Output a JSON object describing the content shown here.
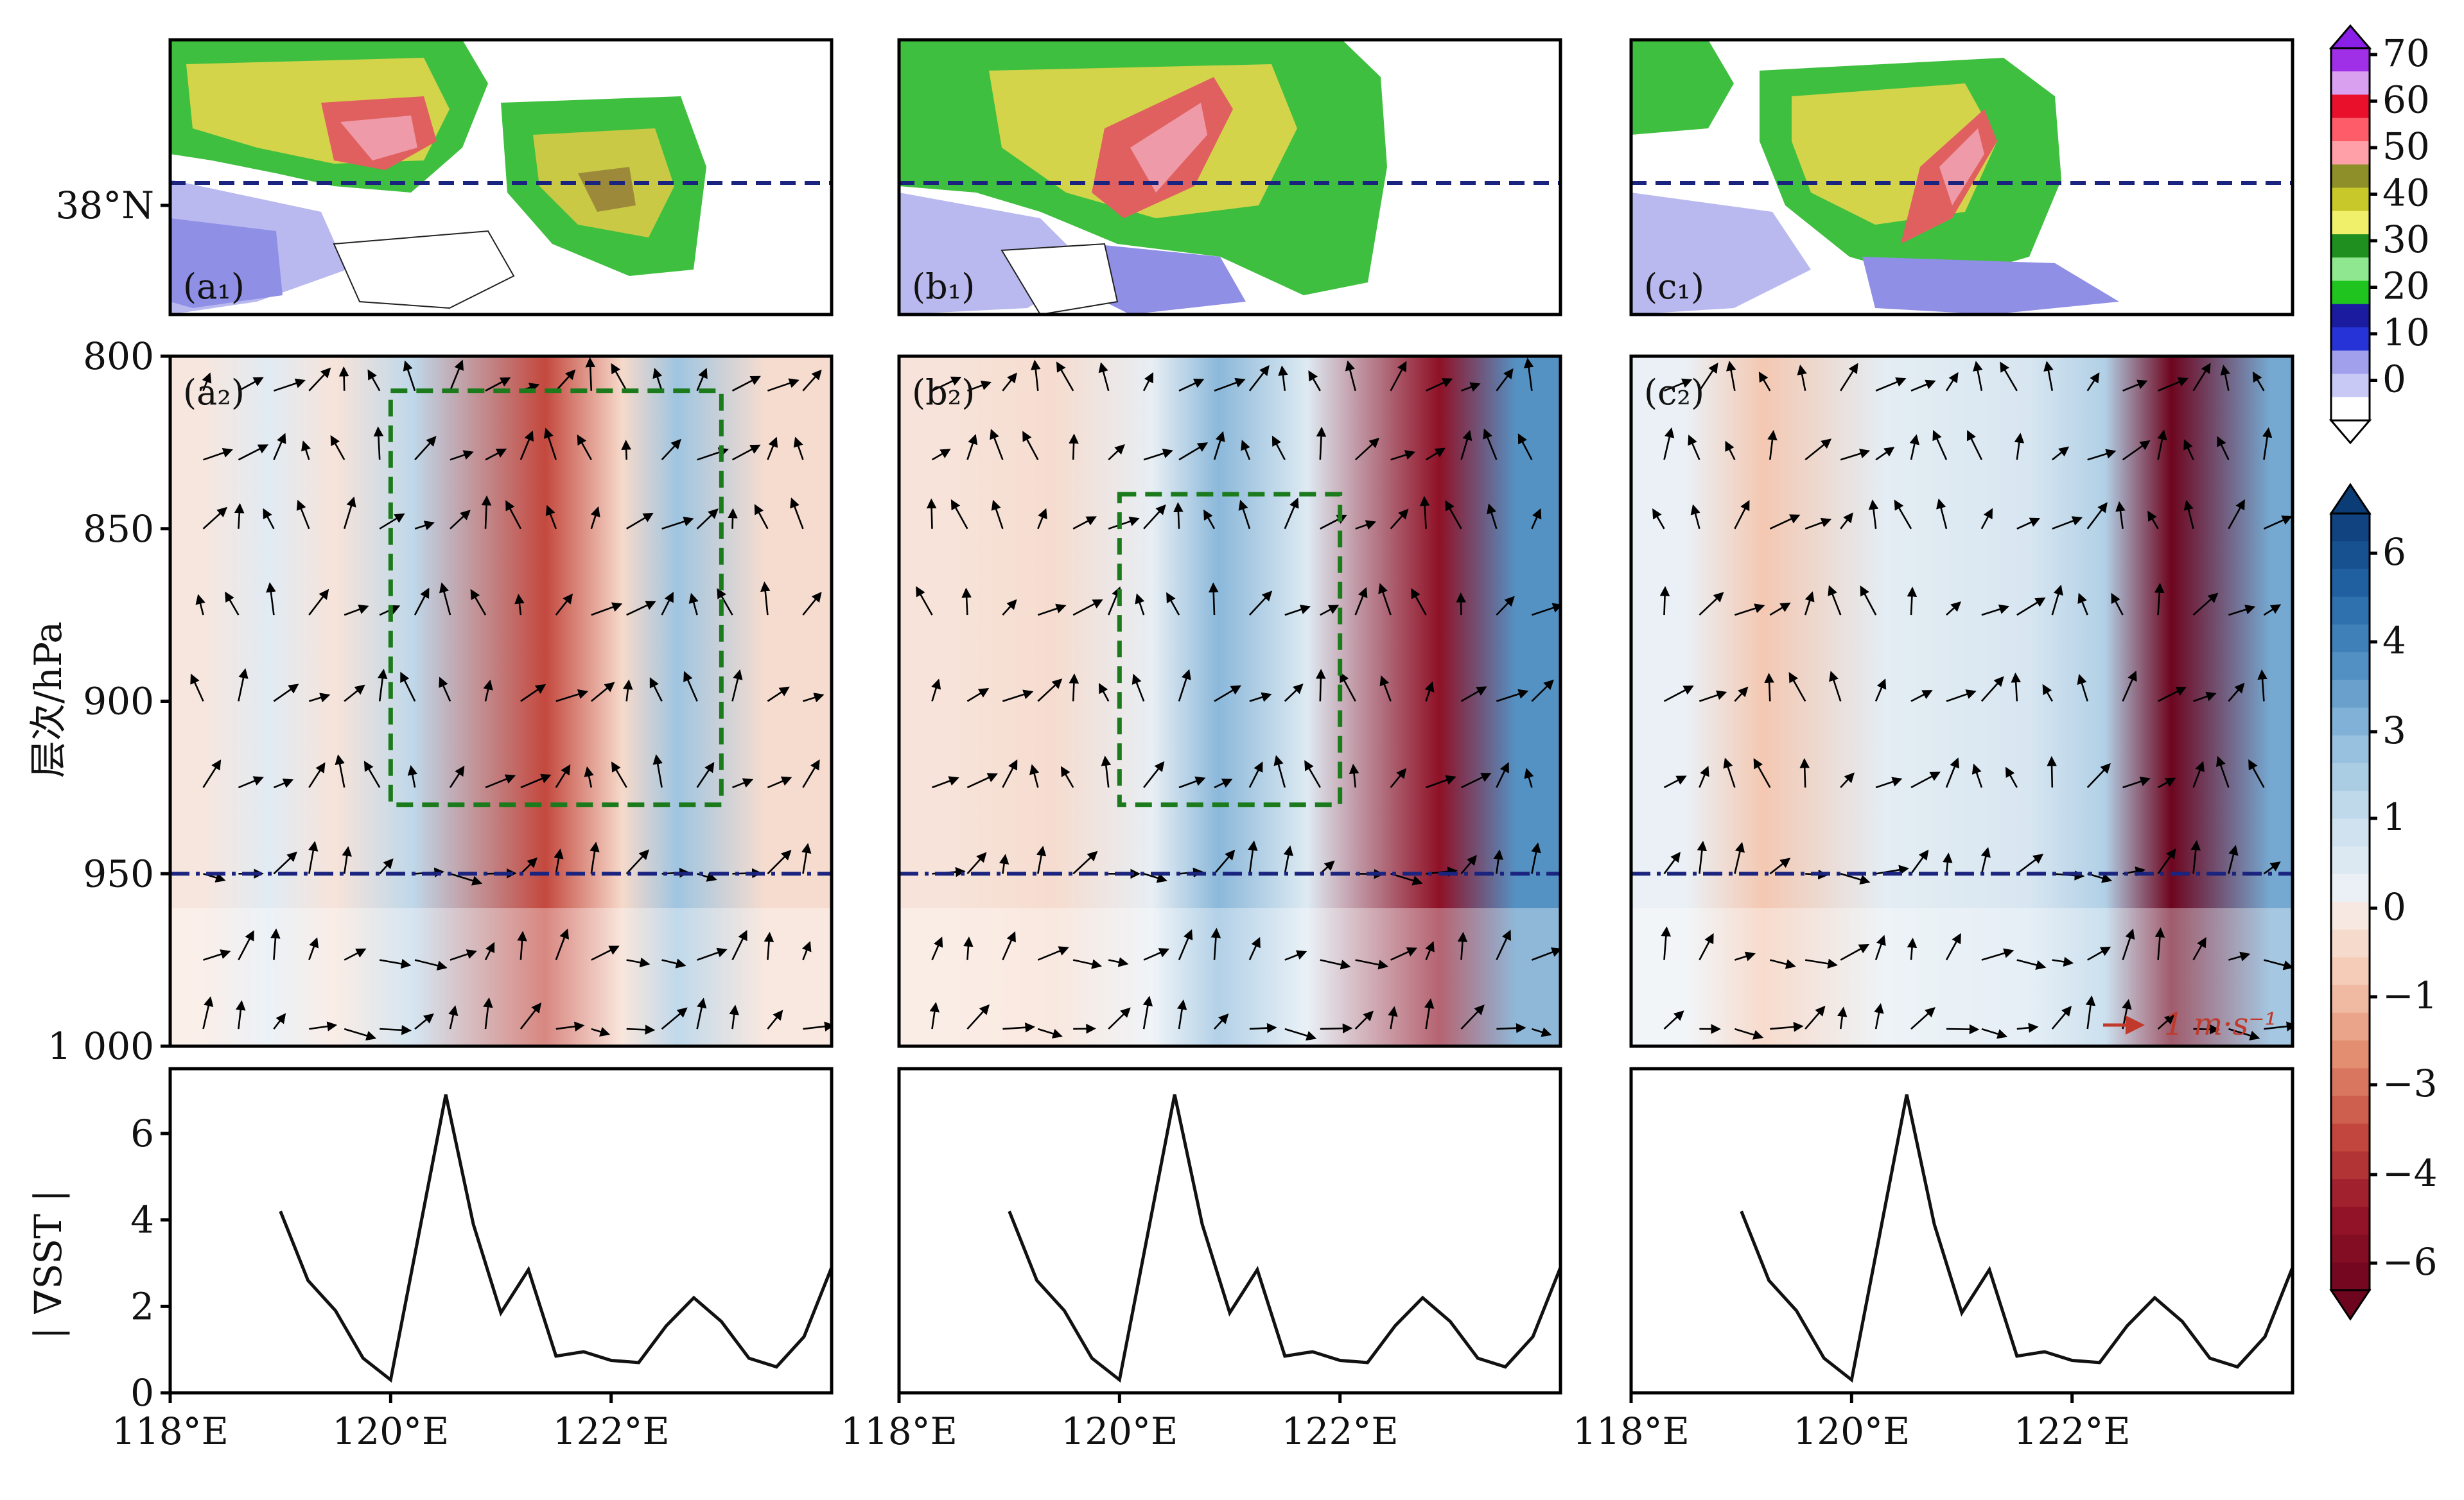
{
  "chart_data": [
    {
      "type": "heatmap",
      "description_role": "reflectivity maps (top row)",
      "panels": [
        "(a₁)",
        "(b₁)",
        "(c₁)"
      ],
      "ytick_labels": [
        "38°N"
      ],
      "reference_line_lat": 38,
      "colorbar": {
        "ticks": [
          70,
          60,
          50,
          40,
          30,
          20,
          10,
          0
        ]
      }
    },
    {
      "type": "heatmap",
      "description_role": "vertical cross-sections (middle row)",
      "panels": [
        "(a₂)",
        "(b₂)",
        "(c₂)"
      ],
      "ylabel": "层次/hPa",
      "ylim": [
        1000,
        800
      ],
      "ytick_labels": [
        "800",
        "850",
        "900",
        "950",
        "1 000"
      ],
      "reference_level_hPa": 950,
      "vector_key": "1 m·s⁻¹",
      "boxes": [
        {
          "panel": "(a₂)",
          "x": [
            120.0,
            123.0
          ],
          "p": [
            810,
            930
          ]
        },
        {
          "panel": "(b₂)",
          "x": [
            120.0,
            122.0
          ],
          "p": [
            840,
            930
          ]
        }
      ],
      "colorbar": {
        "ticks": [
          6,
          4,
          3,
          1,
          0,
          -1,
          -3,
          -4,
          -6
        ]
      },
      "columns": {
        "(a₂)": [
          {
            "x": 118.3,
            "v": -0.3
          },
          {
            "x": 118.9,
            "v": 0.5
          },
          {
            "x": 119.5,
            "v": -0.4
          },
          {
            "x": 120.2,
            "v": 1.5
          },
          {
            "x": 121.4,
            "v": -3.6
          },
          {
            "x": 122.1,
            "v": -0.7
          },
          {
            "x": 122.6,
            "v": 2.2
          },
          {
            "x": 123.4,
            "v": -0.6
          }
        ],
        "(b₂)": [
          {
            "x": 118.5,
            "v": -0.4
          },
          {
            "x": 119.4,
            "v": -0.6
          },
          {
            "x": 120.3,
            "v": 0.3
          },
          {
            "x": 120.9,
            "v": 2.6
          },
          {
            "x": 121.7,
            "v": 0.6
          },
          {
            "x": 122.9,
            "v": -5.0
          },
          {
            "x": 123.6,
            "v": 3.6
          }
        ],
        "(c₂)": [
          {
            "x": 118.5,
            "v": 0.2
          },
          {
            "x": 119.2,
            "v": -1.2
          },
          {
            "x": 120.3,
            "v": 0.4
          },
          {
            "x": 121.6,
            "v": 0.8
          },
          {
            "x": 122.3,
            "v": 1.8
          },
          {
            "x": 122.9,
            "v": -6.0
          },
          {
            "x": 123.8,
            "v": 3.0
          }
        ]
      }
    },
    {
      "type": "line",
      "description_role": "SST gradient (bottom row)",
      "ylabel": "| ∇SST |",
      "ylim": [
        0,
        7.5
      ],
      "yticks": [
        0,
        2,
        4,
        6
      ],
      "xticks": [
        "118°E",
        "120°E",
        "122°E"
      ],
      "xlim": [
        118,
        124
      ],
      "series": [
        {
          "x": [
            119.0,
            119.25,
            119.5,
            119.75,
            120.0,
            120.25,
            120.5,
            120.75,
            121.0,
            121.25,
            121.5,
            121.75,
            122.0,
            122.25,
            122.5,
            122.75,
            123.0,
            123.25,
            123.5,
            123.75,
            124.0
          ],
          "y": [
            4.2,
            2.6,
            1.9,
            0.8,
            0.3,
            3.6,
            6.9,
            3.9,
            1.85,
            2.85,
            0.85,
            0.95,
            0.75,
            0.7,
            1.55,
            2.2,
            1.65,
            0.8,
            0.6,
            1.3,
            2.9
          ]
        }
      ]
    }
  ]
}
